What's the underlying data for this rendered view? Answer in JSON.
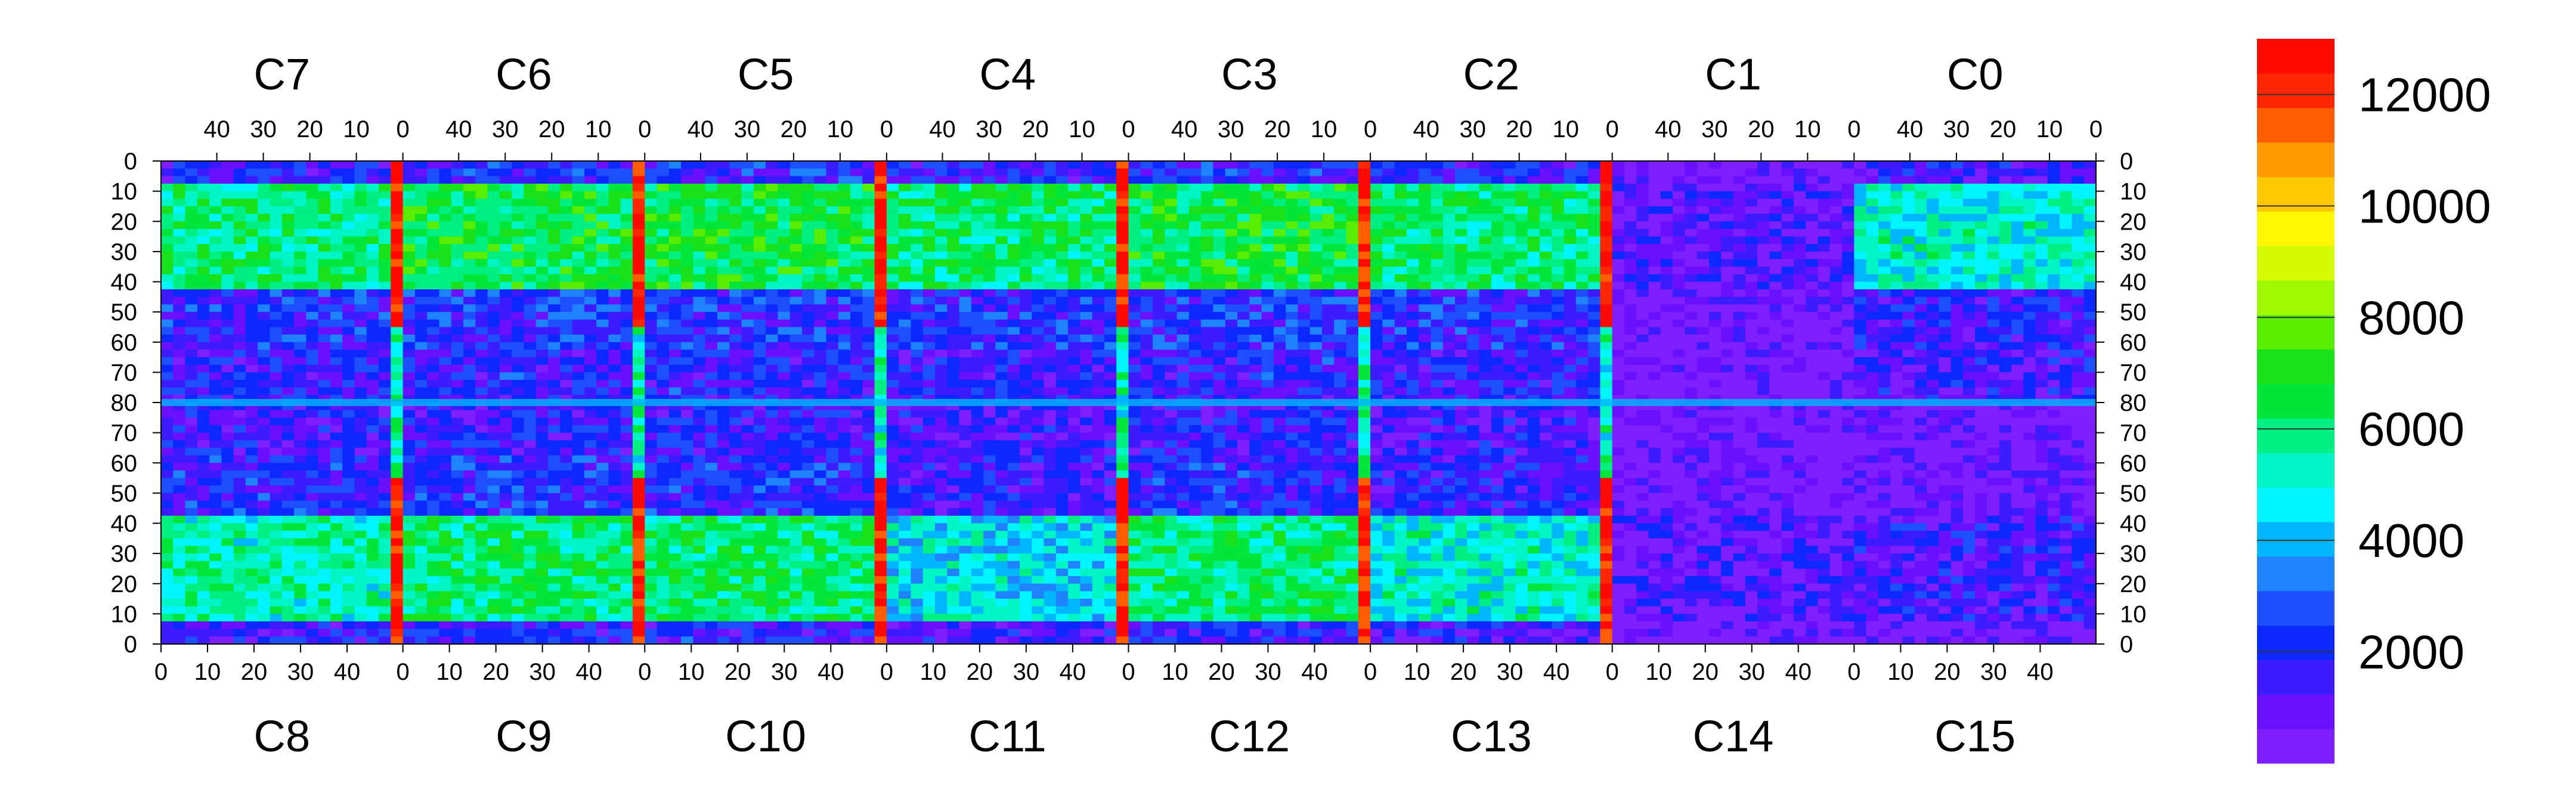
{
  "chart_data": {
    "type": "heatmap",
    "title": "",
    "xlabel": "",
    "ylabel": "",
    "color_scale": {
      "min": 0,
      "max": 13000,
      "ticks": [
        "2000",
        "4000",
        "6000",
        "8000",
        "10000",
        "12000"
      ],
      "tick_values": [
        2000,
        4000,
        6000,
        8000,
        10000,
        12000
      ],
      "colors": [
        "#7f1fff",
        "#6a10ff",
        "#3c1cff",
        "#0a28ff",
        "#1e4fff",
        "#1f83ff",
        "#00b7ff",
        "#00f5ff",
        "#00f5c4",
        "#00ef83",
        "#00e63a",
        "#19e11a",
        "#57ec00",
        "#9df900",
        "#d5fb00",
        "#fff700",
        "#ffc800",
        "#ff9a00",
        "#ff5d00",
        "#ff2600",
        "#ff0a00"
      ]
    },
    "chips_top": [
      "C7",
      "C6",
      "C5",
      "C4",
      "C3",
      "C2",
      "C1",
      "C0"
    ],
    "chips_bottom": [
      "C8",
      "C9",
      "C10",
      "C11",
      "C12",
      "C13",
      "C14",
      "C15"
    ],
    "top_axis_ticks": [
      "40",
      "30",
      "20",
      "10",
      "0"
    ],
    "bottom_axis_ticks": [
      "0",
      "10",
      "20",
      "30",
      "40"
    ],
    "left_axis_ticks": [
      "0",
      "10",
      "20",
      "30",
      "40",
      "50",
      "60",
      "70",
      "80",
      "70",
      "60",
      "50",
      "40",
      "30",
      "20",
      "10",
      "0"
    ],
    "right_axis_ticks": [
      "0",
      "10",
      "20",
      "30",
      "40",
      "50",
      "60",
      "70",
      "80",
      "70",
      "60",
      "50",
      "40",
      "30",
      "20",
      "10",
      "0"
    ],
    "columns_per_chip": 52,
    "rows_per_half": 80,
    "chip_mean_levels_top": [
      6000,
      6500,
      6500,
      6000,
      6500,
      6000,
      1000,
      5000
    ],
    "chip_mean_levels_bottom": [
      5500,
      6000,
      6000,
      4500,
      6000,
      5000,
      1000,
      1500
    ],
    "grid": false
  }
}
